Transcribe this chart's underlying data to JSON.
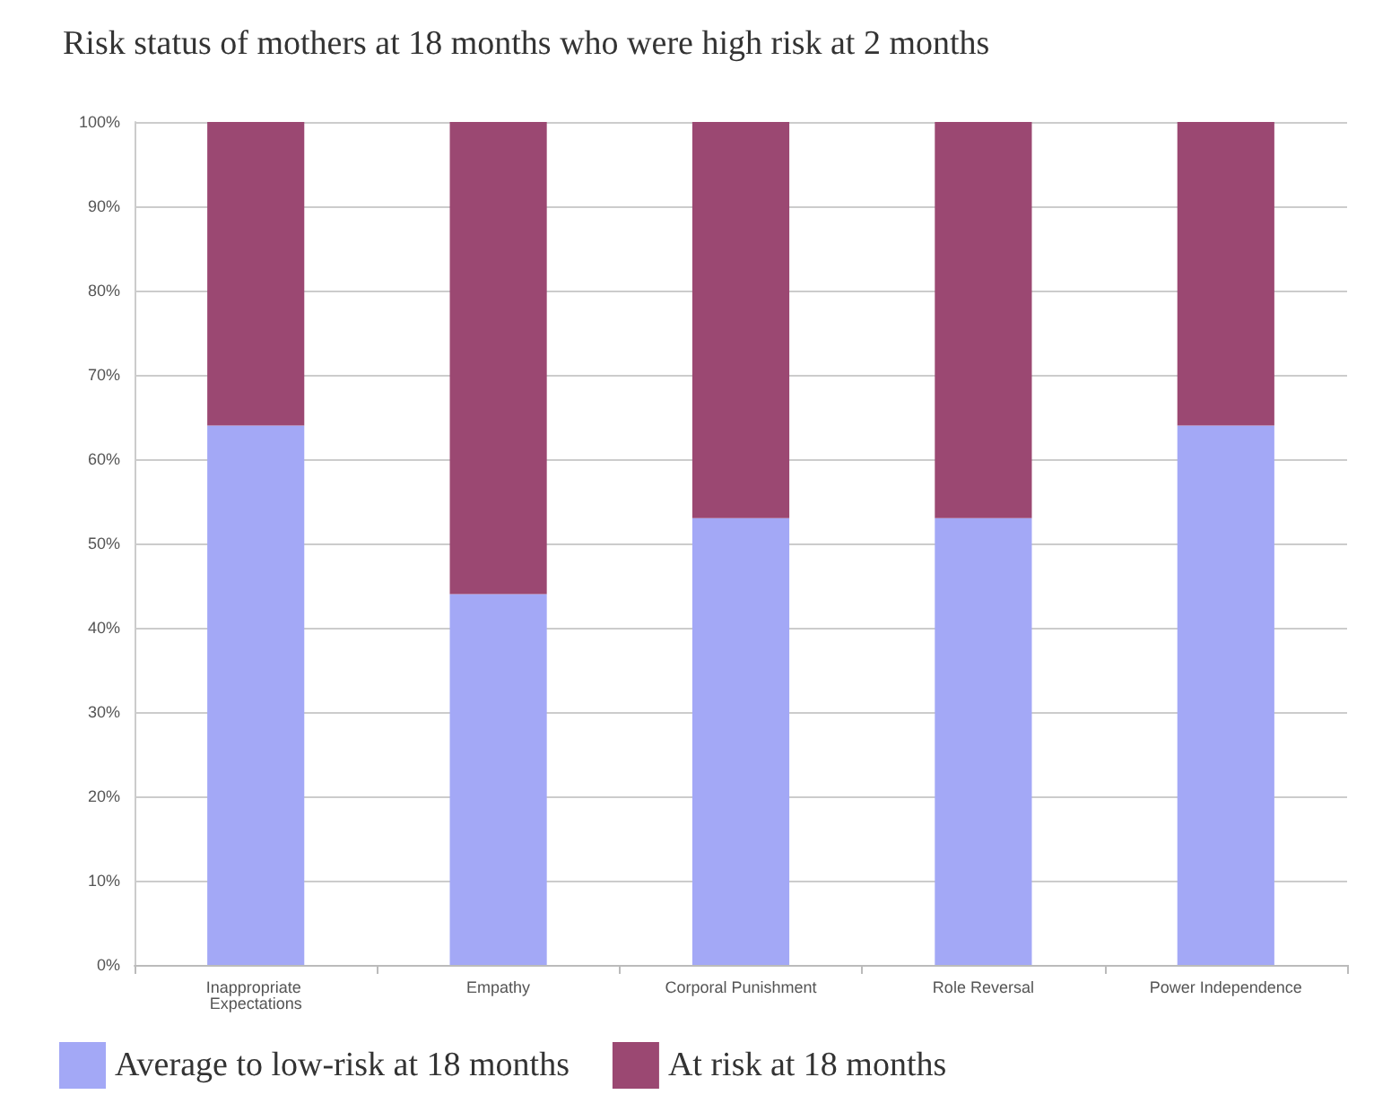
{
  "chart_data": {
    "type": "bar",
    "title": "Risk status of mothers at 18 months who were high risk at 2 months",
    "categories": [
      "Inappropriate Expectations",
      "Empathy",
      "Corporal Punishment",
      "Role Reversal",
      "Power Independence"
    ],
    "stacked": true,
    "series": [
      {
        "name": "Average to low-risk at 18 months",
        "color": "#a3a8f6",
        "values": [
          64,
          44,
          53,
          53,
          64
        ]
      },
      {
        "name": "At risk at 18 months",
        "color": "#9b4872",
        "values": [
          36,
          56,
          47,
          47,
          36
        ]
      }
    ],
    "ylim": [
      0,
      100
    ],
    "yticks": [
      {
        "value": 0,
        "label": "0%"
      },
      {
        "value": 10,
        "label": "10%"
      },
      {
        "value": 20,
        "label": "20%"
      },
      {
        "value": 30,
        "label": "30%"
      },
      {
        "value": 40,
        "label": "40%"
      },
      {
        "value": 50,
        "label": "50%"
      },
      {
        "value": 60,
        "label": "60%"
      },
      {
        "value": 70,
        "label": "70%"
      },
      {
        "value": 80,
        "label": "80%"
      },
      {
        "value": 90,
        "label": "90%"
      },
      {
        "value": 100,
        "label": "100%"
      }
    ],
    "grid": "y",
    "legend": "bottom"
  }
}
